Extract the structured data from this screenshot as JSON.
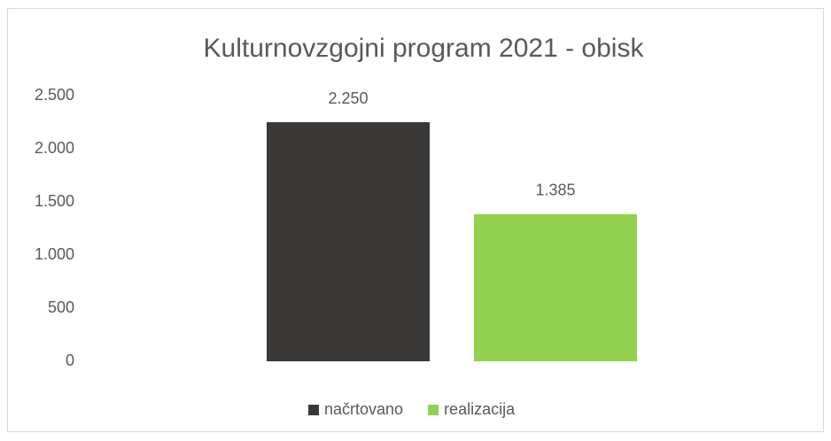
{
  "chart_data": {
    "type": "bar",
    "title": "Kulturnovzgojni program 2021 - obisk",
    "categories": [
      null
    ],
    "series": [
      {
        "name": "načrtovano",
        "color": "#3a3938",
        "values": [
          2250
        ],
        "value_labels": [
          "2.250"
        ]
      },
      {
        "name": "realizacija",
        "color": "#92d050",
        "values": [
          1385
        ],
        "value_labels": [
          "1.385"
        ]
      }
    ],
    "ylim": [
      0,
      2500
    ],
    "yticks": [
      0,
      500,
      {
        "value": 1000,
        "label": "1.000"
      },
      {
        "value": 1500,
        "label": "1.500"
      },
      {
        "value": 2000,
        "label": "2.000"
      },
      {
        "value": 2500,
        "label": "2.500"
      }
    ],
    "grid": false,
    "legend": "bottom"
  }
}
